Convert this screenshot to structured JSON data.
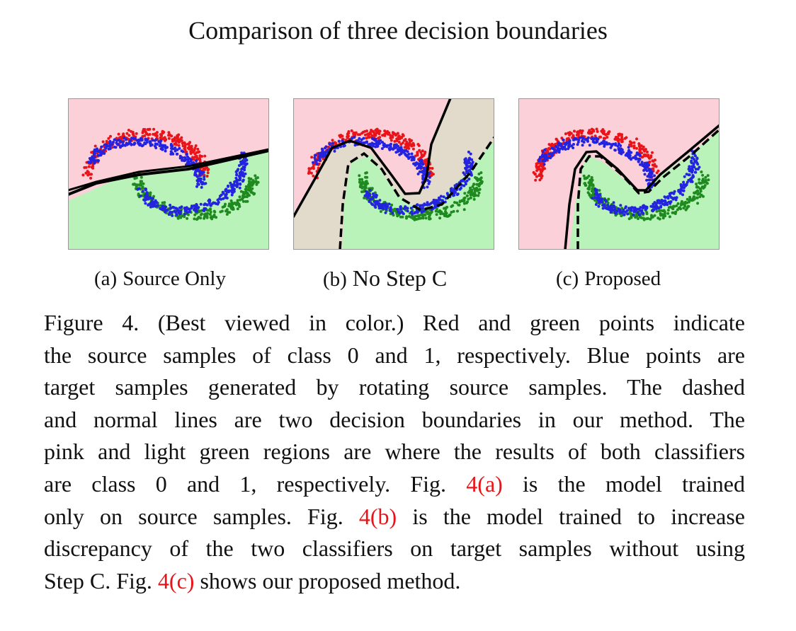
{
  "figure_title": "Comparison of three decision boundaries",
  "colors": {
    "pink_region": "#fcd0d8",
    "green_region": "#b9f3b9",
    "gray_region": "#e2dbcc",
    "class0_points": "#e8141a",
    "class1_points": "#1f8a1f",
    "target_points": "#2323e0",
    "boundary": "#000000",
    "reference_link": "#e8141a"
  },
  "subfigures": [
    {
      "id": "a",
      "tag": "(a)",
      "label": "Source Only",
      "boundaries": [
        "normal"
      ],
      "regions": [
        "pink",
        "light green"
      ]
    },
    {
      "id": "b",
      "tag": "(b)",
      "label": "No Step C",
      "boundaries": [
        "normal",
        "dashed"
      ],
      "regions": [
        "pink",
        "light green",
        "gray"
      ]
    },
    {
      "id": "c",
      "tag": "(c)",
      "label": "Proposed",
      "boundaries": [
        "normal",
        "dashed"
      ],
      "regions": [
        "pink",
        "light green"
      ]
    }
  ],
  "caption_lines": [
    [
      {
        "t": "Figure 4. (Best viewed in color.)  Red and green points indicate"
      }
    ],
    [
      {
        "t": "the source samples of class 0 and 1, respectively. Blue points are"
      }
    ],
    [
      {
        "t": "target samples generated by rotating source samples. The dashed"
      }
    ],
    [
      {
        "t": "and normal lines are two decision boundaries in our method. The"
      }
    ],
    [
      {
        "t": "pink and light green regions are where the results of both classifiers"
      }
    ],
    [
      {
        "t": "are class 0 and 1, respectively.  Fig. "
      },
      {
        "t": "4(a)",
        "ref": true
      },
      {
        "t": " is the model trained"
      }
    ],
    [
      {
        "t": "only on source samples. Fig. "
      },
      {
        "t": "4(b)",
        "ref": true
      },
      {
        "t": " is the model trained to increase"
      }
    ],
    [
      {
        "t": "discrepancy of the two classifiers on target samples without using"
      }
    ],
    [
      {
        "t": "Step C. Fig. "
      },
      {
        "t": "4(c)",
        "ref": true
      },
      {
        "t": " shows our proposed method."
      }
    ]
  ]
}
